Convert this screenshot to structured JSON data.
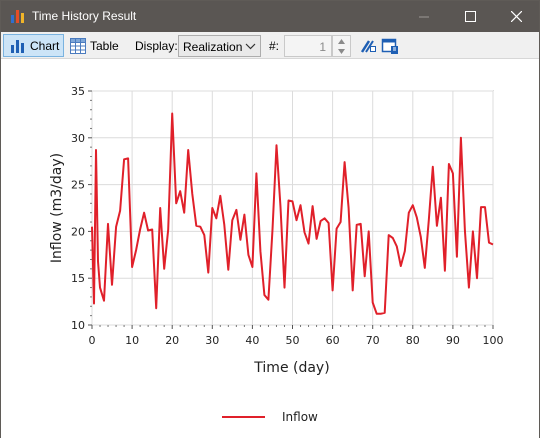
{
  "window": {
    "title": "Time History Result"
  },
  "toolbar": {
    "chart_label": "Chart",
    "table_label": "Table",
    "display_label": "Display:",
    "display_value": "Realization",
    "num_label": "#:",
    "num_value": "1"
  },
  "colors": {
    "titlebar": "#5a5653",
    "series": "#e0202a",
    "grid": "#dcdcdc"
  },
  "chart_data": {
    "type": "line",
    "xlabel": "Time (day)",
    "ylabel": "Inflow (m3/day)",
    "xlim": [
      0,
      100
    ],
    "ylim": [
      10,
      35
    ],
    "xticks": [
      0,
      10,
      20,
      30,
      40,
      50,
      60,
      70,
      80,
      90,
      100
    ],
    "yticks": [
      10,
      15,
      20,
      25,
      30,
      35
    ],
    "grid": true,
    "legend": "bottom-center",
    "series": [
      {
        "name": "Inflow",
        "color": "#e0202a",
        "x": [
          0,
          0.5,
          1,
          1.5,
          2,
          3,
          4,
          5,
          6,
          7,
          8,
          9,
          10,
          11,
          12,
          13,
          14,
          15,
          16,
          17,
          18,
          19,
          20,
          21,
          22,
          23,
          24,
          25,
          26,
          27,
          28,
          29,
          30,
          31,
          32,
          33,
          34,
          35,
          36,
          37,
          38,
          39,
          40,
          41,
          42,
          43,
          44,
          45,
          46,
          47,
          48,
          49,
          50,
          51,
          52,
          53,
          54,
          55,
          56,
          57,
          58,
          59,
          60,
          61,
          62,
          63,
          64,
          65,
          66,
          67,
          68,
          69,
          70,
          71,
          72,
          73,
          74,
          75,
          76,
          77,
          78,
          79,
          80,
          81,
          82,
          83,
          84,
          85,
          86,
          87,
          88,
          89,
          90,
          91,
          92,
          93,
          94,
          95,
          96,
          97,
          98,
          99,
          100
        ],
        "y": [
          20.5,
          12.3,
          28.7,
          16.8,
          14.0,
          12.6,
          20.8,
          14.3,
          20.5,
          22.2,
          27.7,
          27.8,
          16.2,
          18.0,
          20.2,
          22.0,
          20.1,
          20.2,
          11.8,
          22.5,
          16.0,
          20.2,
          32.6,
          23.0,
          24.3,
          22.0,
          28.7,
          24.0,
          20.6,
          20.5,
          19.6,
          15.6,
          22.5,
          21.4,
          23.8,
          20.7,
          15.9,
          21.2,
          22.3,
          19.1,
          21.8,
          17.5,
          16.2,
          26.2,
          17.9,
          13.2,
          12.7,
          20.2,
          29.2,
          22.6,
          14.0,
          23.3,
          23.2,
          21.2,
          22.8,
          19.9,
          18.7,
          22.7,
          19.2,
          21.1,
          21.4,
          20.9,
          13.7,
          20.3,
          21.0,
          27.4,
          22.5,
          13.7,
          20.7,
          20.8,
          15.2,
          20.0,
          12.4,
          11.2,
          11.2,
          11.3,
          19.6,
          19.3,
          18.4,
          16.3,
          17.9,
          22.0,
          22.8,
          21.5,
          19.4,
          16.1,
          21.2,
          26.9,
          20.6,
          23.6,
          15.8,
          27.2,
          26.2,
          17.3,
          30.0,
          20.1,
          14.0,
          20.0,
          15.0,
          22.6,
          22.6,
          18.8,
          18.6
        ]
      }
    ]
  }
}
